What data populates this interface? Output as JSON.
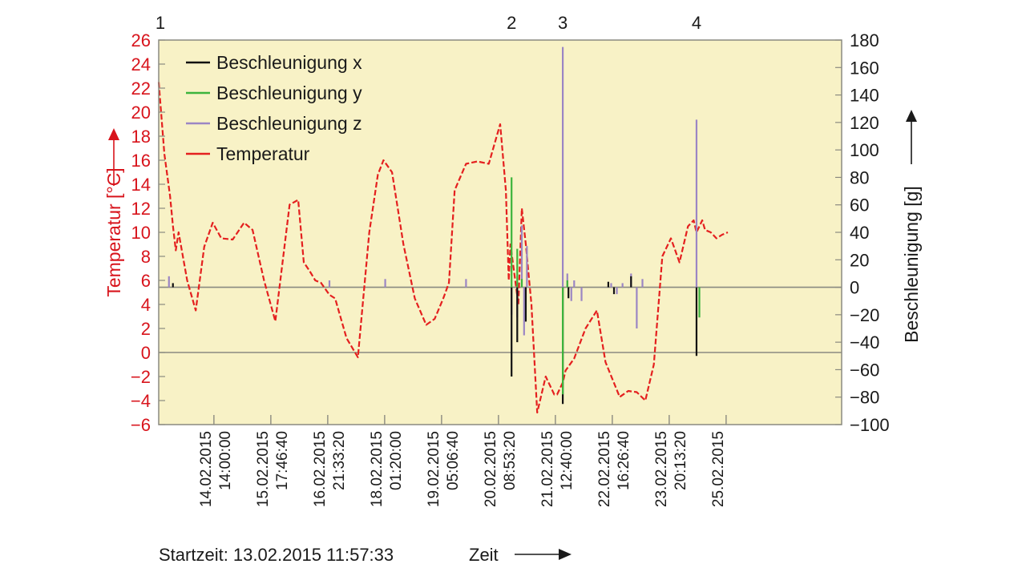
{
  "chart_data": {
    "type": "line",
    "colors": {
      "background": "#f8f2c6",
      "temperature": "#e4201f",
      "accel_x": "#111111",
      "accel_y": "#3cb43c",
      "accel_z": "#9b86c4",
      "left_axis": "#d8141c",
      "grid": "#8a8a80"
    },
    "legend": {
      "placement": "top-left",
      "items": [
        {
          "label": "Beschleunigung x",
          "series": "accel_x"
        },
        {
          "label": "Beschleunigung y",
          "series": "accel_y"
        },
        {
          "label": "Beschleunigung z",
          "series": "accel_z"
        },
        {
          "label": "Temperatur",
          "series": "temperature"
        }
      ]
    },
    "ylabel_left": "Temperatur [°C]",
    "ylabel_right": "Beschleunigung [g]",
    "xlabel": "Zeit",
    "start_time_label": "Startzeit: 13.02.2015 11:57:33",
    "xlim": [
      0,
      12
    ],
    "ylim_left": [
      -6,
      26
    ],
    "ylim_right": [
      -100,
      180
    ],
    "y_ticks_left": [
      -6,
      -4,
      -2,
      0,
      2,
      4,
      6,
      8,
      10,
      12,
      14,
      16,
      18,
      20,
      22,
      24,
      26
    ],
    "y_ticks_right": [
      -100,
      -80,
      -60,
      -40,
      -20,
      0,
      20,
      40,
      60,
      80,
      100,
      120,
      140,
      160,
      180
    ],
    "y_ticks_right_labels": [
      "−100",
      "−80",
      "−60",
      "−40",
      "−20",
      "0",
      "20",
      "40",
      "60",
      "80",
      "100",
      "120",
      "140",
      "160",
      "180"
    ],
    "x_ticks": [
      {
        "x": 0.97,
        "date": "14.02.2015",
        "time": "14:00:00"
      },
      {
        "x": 1.97,
        "date": "15.02.2015",
        "time": "17:46:40"
      },
      {
        "x": 2.97,
        "date": "16.02.2015",
        "time": "21:33:20"
      },
      {
        "x": 3.97,
        "date": "18.02.2015",
        "time": "01:20:00"
      },
      {
        "x": 4.97,
        "date": "19.02.2015",
        "time": "05:06:40"
      },
      {
        "x": 5.97,
        "date": "20.02.2015",
        "time": "08:53:20"
      },
      {
        "x": 6.97,
        "date": "21.02.2015",
        "time": "12:40:00"
      },
      {
        "x": 7.97,
        "date": "22.02.2015",
        "time": "16:26:40"
      },
      {
        "x": 8.97,
        "date": "23.02.2015",
        "time": "20:13:20"
      },
      {
        "x": 9.97,
        "date": "25.02.2015",
        "time": ""
      }
    ],
    "reference_lines": [
      {
        "axis": "left",
        "value": 0
      },
      {
        "axis": "right",
        "value": 0
      }
    ],
    "event_markers": [
      {
        "label": "1",
        "x": 0.0
      },
      {
        "label": "2",
        "x": 6.2
      },
      {
        "label": "3",
        "x": 7.1
      },
      {
        "label": "4",
        "x": 9.45
      }
    ],
    "series": [
      {
        "key": "temperature",
        "axis": "left",
        "x": [
          0.0,
          0.1,
          0.2,
          0.25,
          0.3,
          0.35,
          0.5,
          0.65,
          0.8,
          0.95,
          1.1,
          1.3,
          1.5,
          1.65,
          1.85,
          2.05,
          2.3,
          2.45,
          2.55,
          2.65,
          2.75,
          2.85,
          3.0,
          3.1,
          3.3,
          3.5,
          3.7,
          3.85,
          3.95,
          4.1,
          4.3,
          4.5,
          4.7,
          4.85,
          5.0,
          5.1,
          5.2,
          5.4,
          5.6,
          5.8,
          6.0,
          6.1,
          6.15,
          6.18,
          6.25,
          6.32,
          6.38,
          6.45,
          6.55,
          6.65,
          6.8,
          6.95,
          7.0,
          7.1,
          7.15,
          7.3,
          7.5,
          7.7,
          7.85,
          8.1,
          8.25,
          8.4,
          8.55,
          8.7,
          8.85,
          9.0,
          9.15,
          9.3,
          9.4,
          9.45,
          9.5,
          9.55,
          9.6,
          9.7,
          9.8,
          9.9,
          10.0
        ],
        "y": [
          22.5,
          16.5,
          13,
          10.5,
          8.5,
          10,
          6,
          3.5,
          8.8,
          10.8,
          9.5,
          9.4,
          10.8,
          10.2,
          6,
          2.6,
          12.3,
          12.7,
          7.5,
          6.8,
          6,
          5.8,
          4.8,
          4.5,
          1.2,
          -0.4,
          10,
          14.8,
          16,
          15,
          9,
          4.5,
          2.3,
          2.8,
          4.5,
          5.8,
          13.5,
          15.7,
          15.9,
          15.7,
          19,
          13.5,
          6,
          9,
          6.5,
          4,
          12,
          9,
          4,
          -5,
          -2,
          -3.5,
          -3.5,
          -2.5,
          -1.5,
          -0.5,
          2,
          3.5,
          -0.8,
          -3.7,
          -3.2,
          -3.3,
          -4,
          -1,
          8,
          9.5,
          7.5,
          10.5,
          11,
          10,
          10.5,
          11,
          10.2,
          10,
          9.5,
          9.8,
          10
        ],
        "note": ""
      },
      {
        "key": "accel_z",
        "axis": "right",
        "type": "spikes",
        "x": [
          0.18,
          3.0,
          3.98,
          5.4,
          6.2,
          6.3,
          6.38,
          6.42,
          6.47,
          7.1,
          7.18,
          7.25,
          7.3,
          7.43,
          7.95,
          8.05,
          8.15,
          8.3,
          8.4,
          8.5,
          9.45
        ],
        "y": [
          8,
          5,
          6,
          6,
          -20,
          -22,
          45,
          -35,
          30,
          175,
          10,
          -10,
          5,
          -10,
          3,
          -5,
          3,
          10,
          -30,
          6,
          122
        ]
      },
      {
        "key": "accel_x",
        "axis": "right",
        "type": "spikes",
        "x": [
          0.25,
          6.2,
          6.3,
          6.45,
          7.1,
          7.2,
          7.9,
          8.0,
          8.3,
          9.45
        ],
        "y": [
          3,
          -65,
          -40,
          -25,
          -85,
          -8,
          4,
          -5,
          8,
          -50
        ]
      },
      {
        "key": "accel_y",
        "axis": "right",
        "type": "spikes",
        "x": [
          6.2,
          6.3,
          6.38,
          7.1,
          7.18,
          9.5
        ],
        "y": [
          80,
          28,
          6,
          -78,
          5,
          -22
        ]
      }
    ]
  }
}
